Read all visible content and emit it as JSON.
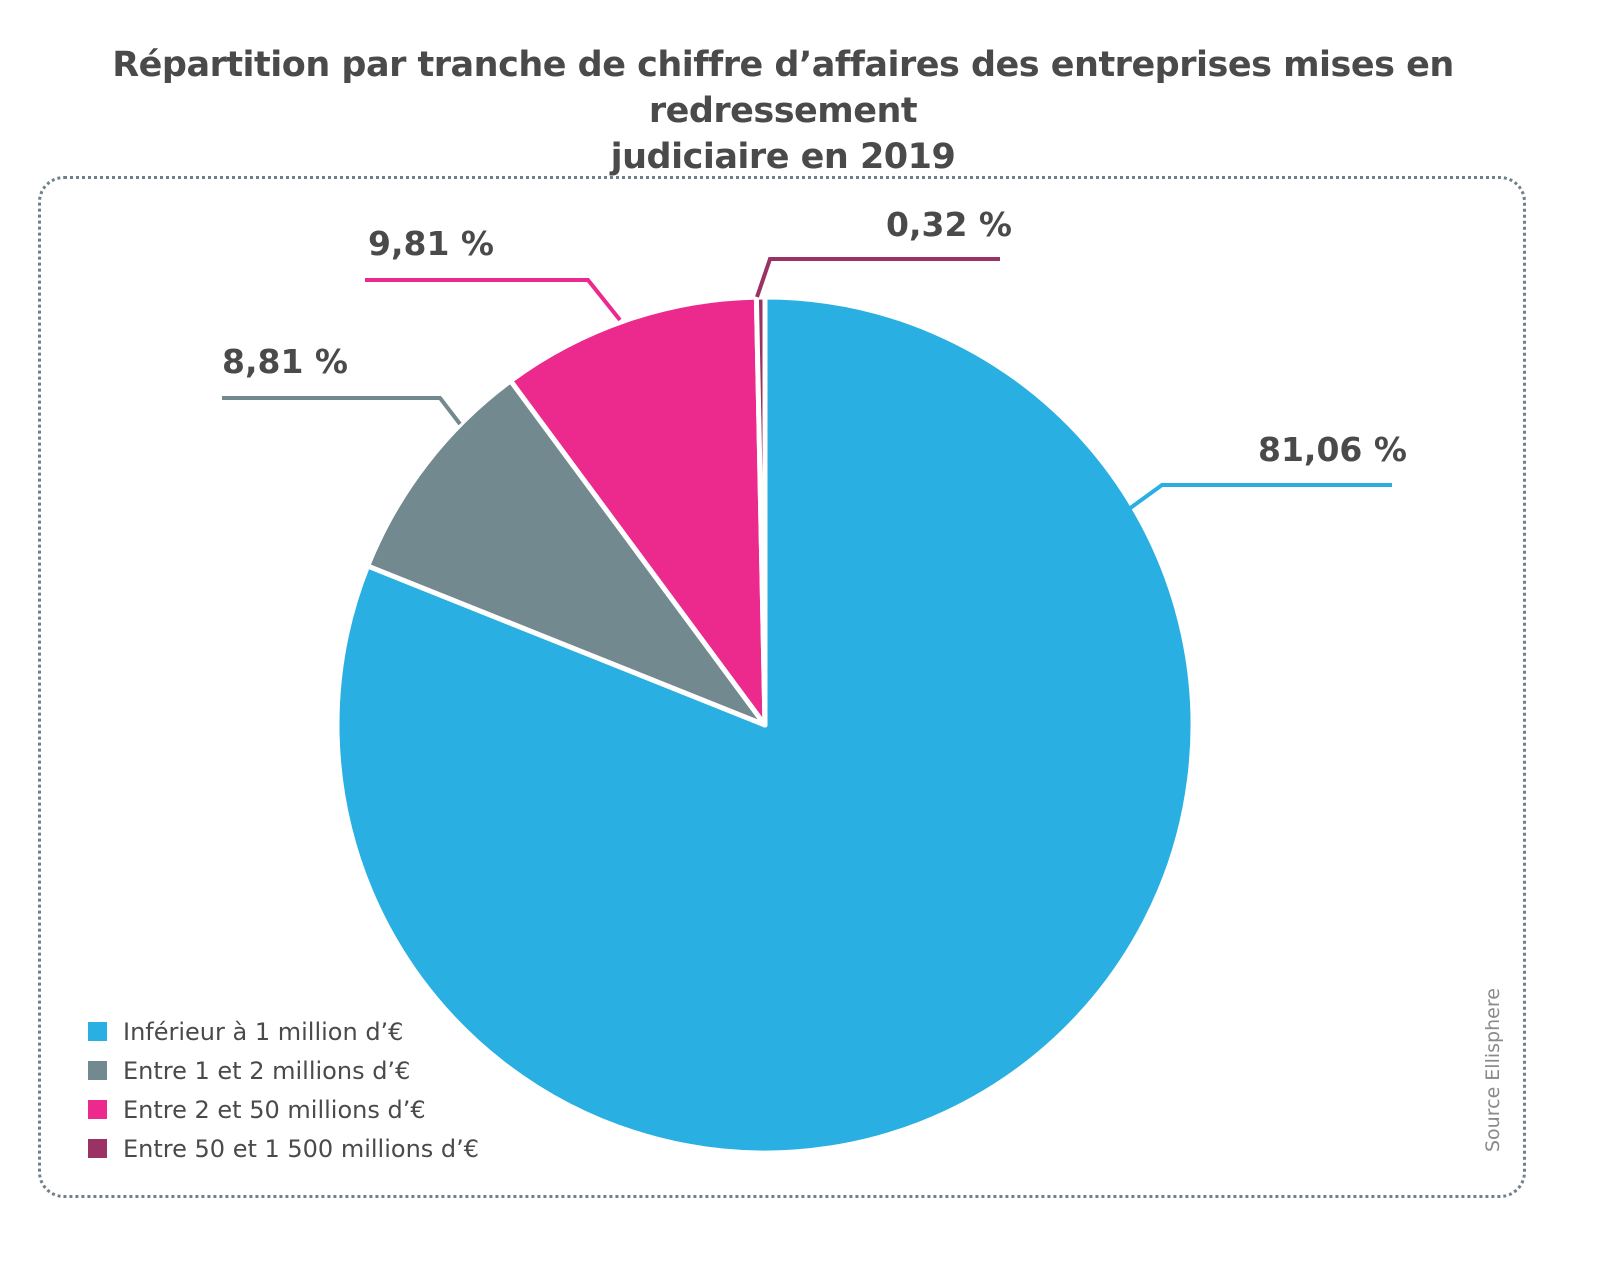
{
  "chart_data": {
    "type": "pie",
    "title": "Répartition par tranche de chiffre d’affaires des entreprises mises en redressement judiciaire en 2019",
    "title_lines": [
      "Répartition par tranche de chiffre d’affaires des entreprises mises en redressement",
      "judiciaire en 2019"
    ],
    "slices": [
      {
        "name": "Inférieur à 1 million d’€",
        "value": 81.06,
        "label": "81,06 %",
        "color": "#2aafe2"
      },
      {
        "name": "Entre 1 et 2 millions d’€",
        "value": 8.81,
        "label": "8,81 %",
        "color": "#738990"
      },
      {
        "name": "Entre 2 et 50 millions d’€",
        "value": 9.81,
        "label": "9,81 %",
        "color": "#ec2a8e"
      },
      {
        "name": "Entre 50 et 1 500 millions d’€",
        "value": 0.32,
        "label": "0,32 %",
        "color": "#9a3263"
      }
    ],
    "legend_position": "bottom-left",
    "source": "Source Ellisphere"
  }
}
